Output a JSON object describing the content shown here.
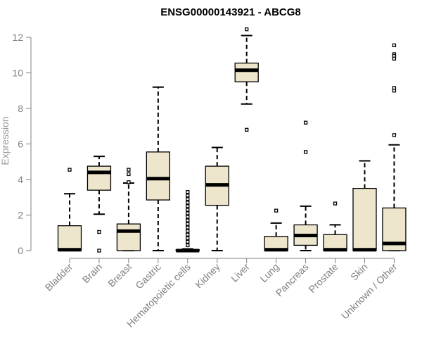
{
  "chart_data": {
    "type": "boxplot",
    "title": "ENSG00000143921 - ABCG8",
    "xlabel": "",
    "ylabel": "Expression",
    "ylim": [
      0,
      12.4
    ],
    "yticks": [
      0,
      2,
      4,
      6,
      8,
      10,
      12
    ],
    "grid": false,
    "box_fill": "#ede6cc",
    "categories": [
      "Bladder",
      "Brain",
      "Breast",
      "Gastric",
      "Hematopoietic cells",
      "Kidney",
      "Liver",
      "Lung",
      "Pancreas",
      "Prostate",
      "Skin",
      "Unknown / Other"
    ],
    "boxes": [
      {
        "category": "Bladder",
        "q1": 0,
        "median": 0.05,
        "q3": 1.4,
        "whisker_low": 0,
        "whisker_high": 3.2,
        "outliers": [
          4.55
        ]
      },
      {
        "category": "Brain",
        "q1": 3.4,
        "median": 4.4,
        "q3": 4.75,
        "whisker_low": 2.05,
        "whisker_high": 5.3,
        "outliers": [
          1.05,
          0
        ]
      },
      {
        "category": "Breast",
        "q1": 0,
        "median": 1.1,
        "q3": 1.5,
        "whisker_low": 0,
        "whisker_high": 3.8,
        "outliers": [
          4.55,
          4.3,
          3.85
        ]
      },
      {
        "category": "Gastric",
        "q1": 2.85,
        "median": 4.05,
        "q3": 5.55,
        "whisker_low": 0,
        "whisker_high": 9.2,
        "outliers": []
      },
      {
        "category": "Hematopoietic cells",
        "q1": 0,
        "median": 0,
        "q3": 0.05,
        "whisker_low": 0,
        "whisker_high": 0.1,
        "outliers": [
          0.3,
          0.5,
          0.7,
          0.9,
          1.1,
          1.3,
          1.5,
          1.7,
          1.9,
          2.1,
          2.3,
          2.5,
          2.7,
          2.9,
          3.1,
          3.3
        ]
      },
      {
        "category": "Kidney",
        "q1": 2.55,
        "median": 3.7,
        "q3": 4.75,
        "whisker_low": 0,
        "whisker_high": 5.8,
        "outliers": []
      },
      {
        "category": "Liver",
        "q1": 9.5,
        "median": 10.15,
        "q3": 10.55,
        "whisker_low": 8.25,
        "whisker_high": 12.1,
        "outliers": [
          12.45,
          6.8
        ]
      },
      {
        "category": "Lung",
        "q1": 0,
        "median": 0.05,
        "q3": 0.8,
        "whisker_low": 0,
        "whisker_high": 1.55,
        "outliers": [
          2.25
        ]
      },
      {
        "category": "Pancreas",
        "q1": 0.3,
        "median": 0.85,
        "q3": 1.45,
        "whisker_low": 0,
        "whisker_high": 2.5,
        "outliers": [
          7.2,
          5.55
        ]
      },
      {
        "category": "Prostate",
        "q1": 0,
        "median": 0.05,
        "q3": 0.9,
        "whisker_low": 0,
        "whisker_high": 1.45,
        "outliers": [
          2.65
        ]
      },
      {
        "category": "Skin",
        "q1": 0,
        "median": 0.05,
        "q3": 3.5,
        "whisker_low": 0,
        "whisker_high": 5.05,
        "outliers": []
      },
      {
        "category": "Unknown / Other",
        "q1": 0,
        "median": 0.4,
        "q3": 2.4,
        "whisker_low": 0,
        "whisker_high": 5.95,
        "outliers": [
          11.55,
          11.05,
          10.95,
          10.8,
          9.15,
          9.0,
          6.5
        ]
      }
    ]
  }
}
